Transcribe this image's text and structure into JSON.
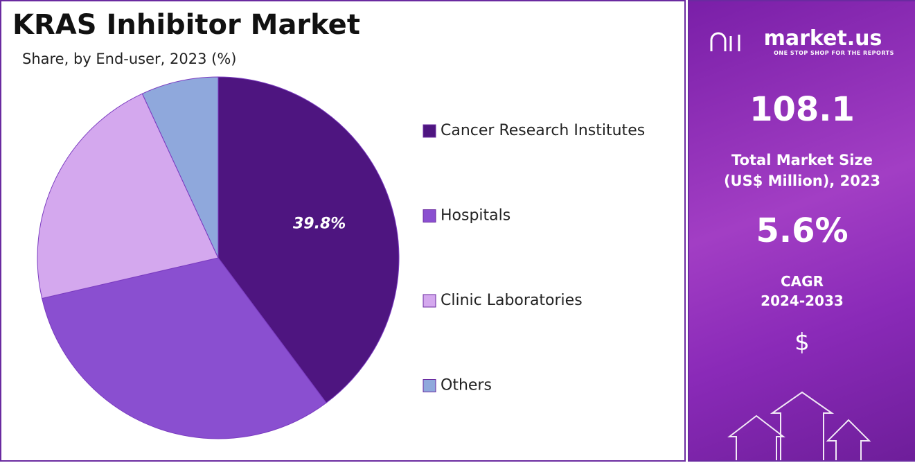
{
  "chart_data": {
    "type": "pie",
    "title": "KRAS Inhibitor Market",
    "subtitle": "Share, by End-user, 2023 (%)",
    "categories": [
      "Cancer Research Institutes",
      "Hospitals",
      "Clinic Laboratories",
      "Others"
    ],
    "values": [
      39.8,
      31.6,
      21.7,
      6.9
    ],
    "value_labels": [
      "39.8%",
      null,
      null,
      null
    ],
    "colors": [
      "#4e1580",
      "#8a4fd0",
      "#d4a8ee",
      "#8fa8dc"
    ],
    "legend": "right"
  },
  "sidebar": {
    "brand": "market.us",
    "tagline": "ONE STOP SHOP FOR THE REPORTS",
    "market_size": "108.1",
    "market_size_label": "Total Market Size (US$ Million), 2023",
    "cagr": "5.6%",
    "cagr_label": "CAGR",
    "cagr_period": "2024-2033",
    "currency": "$"
  }
}
